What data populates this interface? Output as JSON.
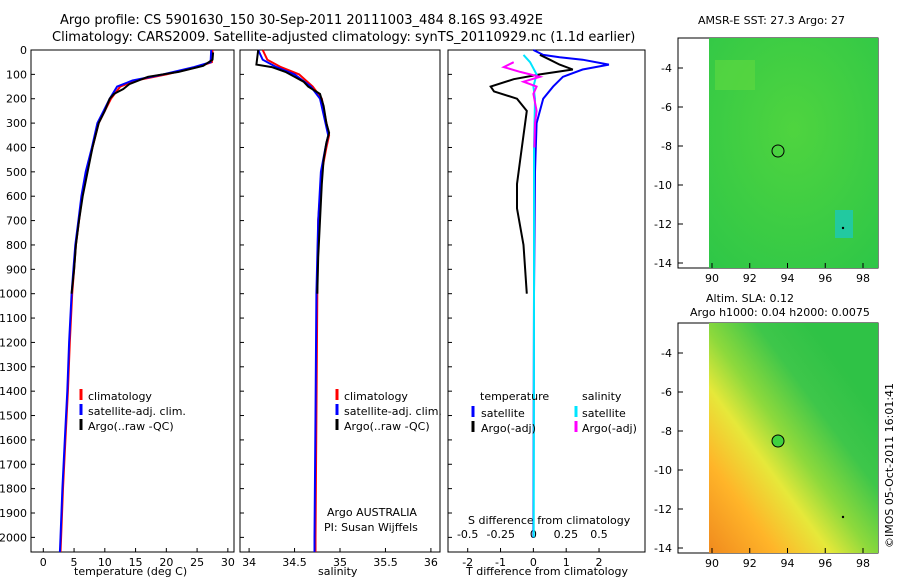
{
  "header": {
    "line1": "Argo profile: CS 5901630_150 30-Sep-2011 20111003_484 8.16S 93.492E",
    "line2": "Climatology: CARS2009. Satellite-adjusted climatology: synTS_20110929.nc (1.1d earlier)"
  },
  "colors": {
    "climatology": "#ff0000",
    "satellite": "#0000ff",
    "argo": "#000000",
    "sal_sat": "#00e5ff",
    "sal_argo": "#ff00ff"
  },
  "chart_data": [
    {
      "type": "line",
      "name": "temperature-profile",
      "xlabel": "temperature (deg C)",
      "ylabel": "",
      "xlim": [
        -2,
        31
      ],
      "ylim": [
        2060,
        0
      ],
      "xticks": [
        0,
        5,
        10,
        15,
        20,
        25,
        30
      ],
      "yticks": [
        0,
        100,
        200,
        300,
        400,
        500,
        600,
        700,
        800,
        900,
        1000,
        1100,
        1200,
        1300,
        1400,
        1500,
        1600,
        1700,
        1800,
        1900,
        2000
      ],
      "legend": [
        "climatology",
        "satellite-adj. clim.",
        "Argo(..raw -QC)"
      ],
      "series": [
        {
          "name": "climatology",
          "color": "#ff0000",
          "points": [
            [
              27.5,
              0
            ],
            [
              27.4,
              50
            ],
            [
              25,
              70
            ],
            [
              20,
              100
            ],
            [
              15,
              125
            ],
            [
              12.5,
              150
            ],
            [
              11,
              200
            ],
            [
              10,
              250
            ],
            [
              9,
              300
            ],
            [
              8,
              400
            ],
            [
              7,
              500
            ],
            [
              6.3,
              600
            ],
            [
              5.8,
              700
            ],
            [
              5.3,
              800
            ],
            [
              5,
              900
            ],
            [
              4.7,
              1000
            ],
            [
              4.3,
              1200
            ],
            [
              4,
              1400
            ],
            [
              3.6,
              1600
            ],
            [
              3.2,
              1800
            ],
            [
              2.9,
              2000
            ],
            [
              2.8,
              2060
            ]
          ]
        },
        {
          "name": "satellite-adj. clim.",
          "color": "#0000ff",
          "points": [
            [
              27.3,
              0
            ],
            [
              27.2,
              50
            ],
            [
              24.5,
              70
            ],
            [
              19.5,
              100
            ],
            [
              14.5,
              125
            ],
            [
              12,
              150
            ],
            [
              10.8,
              200
            ],
            [
              9.8,
              250
            ],
            [
              8.8,
              300
            ],
            [
              7.9,
              400
            ],
            [
              6.9,
              500
            ],
            [
              6.2,
              600
            ],
            [
              5.7,
              700
            ],
            [
              5.2,
              800
            ],
            [
              4.9,
              900
            ],
            [
              4.6,
              1000
            ],
            [
              4.2,
              1200
            ],
            [
              3.9,
              1400
            ],
            [
              3.5,
              1600
            ],
            [
              3.1,
              1800
            ],
            [
              2.8,
              2000
            ],
            [
              2.7,
              2060
            ]
          ]
        },
        {
          "name": "Argo(..raw -QC)",
          "color": "#000000",
          "points": [
            [
              27.6,
              10
            ],
            [
              27.5,
              40
            ],
            [
              26,
              65
            ],
            [
              22,
              90
            ],
            [
              17,
              110
            ],
            [
              14,
              140
            ],
            [
              13,
              160
            ],
            [
              11.5,
              180
            ],
            [
              10.8,
              200
            ],
            [
              10,
              250
            ],
            [
              9,
              300
            ],
            [
              8,
              400
            ],
            [
              7.2,
              500
            ],
            [
              6.4,
              600
            ],
            [
              5.8,
              700
            ],
            [
              5.3,
              800
            ],
            [
              5,
              900
            ],
            [
              4.6,
              1000
            ]
          ]
        }
      ]
    },
    {
      "type": "line",
      "name": "salinity-profile",
      "xlabel": "salinity",
      "ylabel": "",
      "xlim": [
        33.9,
        36.1
      ],
      "ylim": [
        2060,
        0
      ],
      "xticks": [
        34,
        34.5,
        35,
        35.5,
        36
      ],
      "legend": [
        "climatology",
        "satellite-adj. clim.",
        "Argo(..raw -QC)"
      ],
      "annotation": [
        "Argo AUSTRALIA",
        "PI: Susan Wijffels"
      ],
      "series": [
        {
          "name": "climatology",
          "color": "#ff0000",
          "points": [
            [
              34.15,
              0
            ],
            [
              34.2,
              40
            ],
            [
              34.35,
              70
            ],
            [
              34.55,
              100
            ],
            [
              34.7,
              150
            ],
            [
              34.8,
              200
            ],
            [
              34.85,
              300
            ],
            [
              34.88,
              350
            ],
            [
              34.85,
              400
            ],
            [
              34.8,
              500
            ],
            [
              34.76,
              700
            ],
            [
              34.75,
              1000
            ],
            [
              34.74,
              1500
            ],
            [
              34.73,
              2000
            ],
            [
              34.73,
              2060
            ]
          ]
        },
        {
          "name": "satellite-adj. clim.",
          "color": "#0000ff",
          "points": [
            [
              34.1,
              0
            ],
            [
              34.15,
              40
            ],
            [
              34.3,
              70
            ],
            [
              34.5,
              100
            ],
            [
              34.68,
              150
            ],
            [
              34.78,
              200
            ],
            [
              34.84,
              300
            ],
            [
              34.87,
              350
            ],
            [
              34.84,
              400
            ],
            [
              34.79,
              500
            ],
            [
              34.76,
              700
            ],
            [
              34.74,
              1000
            ],
            [
              34.73,
              1500
            ],
            [
              34.72,
              2000
            ],
            [
              34.72,
              2060
            ]
          ]
        },
        {
          "name": "Argo(..raw -QC)",
          "color": "#000000",
          "points": [
            [
              34.1,
              0
            ],
            [
              34.08,
              60
            ],
            [
              34.25,
              70
            ],
            [
              34.4,
              90
            ],
            [
              34.5,
              110
            ],
            [
              34.6,
              130
            ],
            [
              34.65,
              150
            ],
            [
              34.78,
              180
            ],
            [
              34.82,
              230
            ],
            [
              34.85,
              300
            ],
            [
              34.88,
              340
            ],
            [
              34.85,
              380
            ],
            [
              34.82,
              450
            ],
            [
              34.8,
              550
            ],
            [
              34.78,
              700
            ],
            [
              34.76,
              850
            ],
            [
              34.75,
              1000
            ]
          ]
        }
      ]
    },
    {
      "type": "line",
      "name": "difference-profile",
      "xlabel": "T difference from climatology",
      "xlabel_top": "S difference from climatology",
      "xlim": [
        -2.6,
        3.4
      ],
      "ylim": [
        2060,
        0
      ],
      "xticks": [
        -2,
        -1,
        0,
        1,
        2
      ],
      "xticks_top": [
        "-0.5",
        "-0.25",
        "0",
        "0.25",
        "0.5"
      ],
      "legend_left": {
        "title": "temperature",
        "items": [
          "satellite",
          "Argo(-adj)"
        ]
      },
      "legend_right": {
        "title": "salinity",
        "items": [
          "satellite",
          "Argo(-adj)"
        ]
      },
      "series": [
        {
          "name": "T satellite",
          "color": "#0000ff",
          "points": [
            [
              0,
              0
            ],
            [
              0.3,
              20
            ],
            [
              0.8,
              30
            ],
            [
              1.5,
              40
            ],
            [
              2.3,
              60
            ],
            [
              1.5,
              80
            ],
            [
              0.9,
              110
            ],
            [
              0.6,
              150
            ],
            [
              0.3,
              200
            ],
            [
              0.1,
              300
            ],
            [
              0.05,
              500
            ],
            [
              0.02,
              1000
            ],
            [
              0,
              2000
            ]
          ]
        },
        {
          "name": "T Argo(-adj)",
          "color": "#000000",
          "points": [
            [
              0.2,
              20
            ],
            [
              0.5,
              40
            ],
            [
              0.8,
              60
            ],
            [
              1.2,
              80
            ],
            [
              0.2,
              100
            ],
            [
              -0.6,
              120
            ],
            [
              -1.3,
              150
            ],
            [
              -1.2,
              170
            ],
            [
              -0.5,
              200
            ],
            [
              -0.2,
              250
            ],
            [
              -0.3,
              350
            ],
            [
              -0.4,
              450
            ],
            [
              -0.5,
              550
            ],
            [
              -0.5,
              650
            ],
            [
              -0.3,
              800
            ],
            [
              -0.2,
              1000
            ]
          ]
        },
        {
          "name": "S satellite",
          "color": "#00e5ff",
          "points": [
            [
              -0.3,
              20
            ],
            [
              -0.1,
              50
            ],
            [
              0.1,
              100
            ],
            [
              0,
              150
            ],
            [
              0.05,
              200
            ],
            [
              0.02,
              400
            ],
            [
              0.02,
              1000
            ],
            [
              0.01,
              2000
            ]
          ]
        },
        {
          "name": "S Argo(-adj)",
          "color": "#ff00ff",
          "points": [
            [
              -0.6,
              50
            ],
            [
              -0.9,
              70
            ],
            [
              -0.4,
              90
            ],
            [
              0.2,
              110
            ],
            [
              -0.3,
              130
            ],
            [
              0.1,
              150
            ],
            [
              0,
              180
            ],
            [
              0.1,
              250
            ],
            [
              0.05,
              300
            ],
            [
              0.03,
              400
            ]
          ]
        }
      ]
    }
  ],
  "maps": {
    "top": {
      "title": "AMSR-E SST: 27.3 Argo: 27",
      "yticks": [
        -4,
        -6,
        -8,
        -10,
        -12,
        -14
      ],
      "xticks": [
        90,
        92,
        94,
        96,
        98
      ]
    },
    "bottom": {
      "title_line1": "Altim. SLA: 0.12",
      "title_line2": "Argo h1000: 0.04 h2000: 0.0075",
      "yticks": [
        -4,
        -6,
        -8,
        -10,
        -12,
        -14
      ],
      "xticks": [
        90,
        92,
        94,
        96,
        98
      ]
    }
  },
  "footer": {
    "stamp": "©IMOS 05-Oct-2011 16:01:41"
  }
}
